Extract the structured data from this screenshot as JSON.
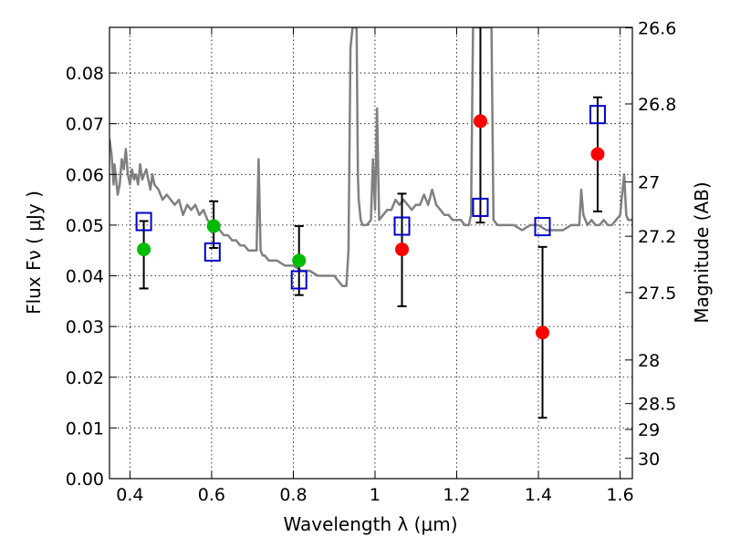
{
  "chart_data": {
    "type": "scatter",
    "xlabel": "Wavelength  λ (μm)",
    "ylabel": "Flux  Fν  ( μJy )",
    "y2label": "Magnitude (AB)",
    "xlim": [
      0.35,
      1.63
    ],
    "ylim": [
      0.0,
      0.089
    ],
    "xticks": [
      0.4,
      0.6,
      0.8,
      1.0,
      1.2,
      1.4,
      1.6
    ],
    "xtick_labels": [
      "0.4",
      "0.6",
      "0.8",
      "1",
      "1.2",
      "1.4",
      "1.6"
    ],
    "yticks": [
      0.0,
      0.01,
      0.02,
      0.03,
      0.04,
      0.05,
      0.06,
      0.07,
      0.08
    ],
    "ytick_labels": [
      "0.00",
      "0.01",
      "0.02",
      "0.03",
      "0.04",
      "0.05",
      "0.06",
      "0.07",
      "0.08"
    ],
    "mag_ticks": [
      {
        "flux": 0.0889,
        "label": "26.6"
      },
      {
        "flux": 0.0739,
        "label": "26.8"
      },
      {
        "flux": 0.0585,
        "label": "27"
      },
      {
        "flux": 0.0478,
        "label": "27.2"
      },
      {
        "flux": 0.0367,
        "label": "27.5"
      },
      {
        "flux": 0.0234,
        "label": "28"
      },
      {
        "flux": 0.0148,
        "label": "28.5"
      },
      {
        "flux": 0.0097,
        "label": "29"
      },
      {
        "flux": 0.004,
        "label": "30"
      }
    ],
    "grid": true,
    "series": [
      {
        "name": "model SED",
        "kind": "line",
        "color": "#808080",
        "x": [
          0.35,
          0.355,
          0.36,
          0.362,
          0.365,
          0.37,
          0.375,
          0.38,
          0.385,
          0.39,
          0.395,
          0.4,
          0.405,
          0.41,
          0.415,
          0.42,
          0.425,
          0.43,
          0.435,
          0.44,
          0.445,
          0.45,
          0.455,
          0.46,
          0.47,
          0.48,
          0.49,
          0.5,
          0.51,
          0.52,
          0.53,
          0.54,
          0.55,
          0.56,
          0.57,
          0.58,
          0.59,
          0.6,
          0.61,
          0.62,
          0.63,
          0.64,
          0.65,
          0.66,
          0.67,
          0.68,
          0.69,
          0.7,
          0.71,
          0.715,
          0.72,
          0.725,
          0.73,
          0.74,
          0.76,
          0.78,
          0.8,
          0.82,
          0.84,
          0.86,
          0.88,
          0.9,
          0.92,
          0.93,
          0.935,
          0.94,
          0.945,
          0.948,
          0.95,
          0.952,
          0.955,
          0.958,
          0.96,
          0.965,
          0.97,
          0.98,
          0.99,
          0.995,
          1.0,
          1.005,
          1.01,
          1.02,
          1.03,
          1.04,
          1.05,
          1.06,
          1.07,
          1.08,
          1.09,
          1.1,
          1.11,
          1.12,
          1.13,
          1.14,
          1.15,
          1.16,
          1.17,
          1.18,
          1.19,
          1.2,
          1.21,
          1.22,
          1.23,
          1.235,
          1.24,
          1.245,
          1.25,
          1.255,
          1.26,
          1.265,
          1.27,
          1.275,
          1.28,
          1.285,
          1.29,
          1.3,
          1.32,
          1.34,
          1.36,
          1.38,
          1.4,
          1.42,
          1.44,
          1.46,
          1.48,
          1.49,
          1.5,
          1.505,
          1.51,
          1.52,
          1.53,
          1.54,
          1.55,
          1.56,
          1.57,
          1.58,
          1.59,
          1.6,
          1.61,
          1.615,
          1.62,
          1.63
        ],
        "y": [
          0.067,
          0.064,
          0.058,
          0.062,
          0.06,
          0.056,
          0.058,
          0.063,
          0.061,
          0.065,
          0.06,
          0.058,
          0.061,
          0.059,
          0.06,
          0.058,
          0.062,
          0.059,
          0.06,
          0.061,
          0.059,
          0.057,
          0.06,
          0.058,
          0.057,
          0.055,
          0.056,
          0.055,
          0.054,
          0.055,
          0.052,
          0.054,
          0.053,
          0.054,
          0.052,
          0.053,
          0.051,
          0.05,
          0.05,
          0.049,
          0.048,
          0.048,
          0.047,
          0.047,
          0.046,
          0.046,
          0.045,
          0.045,
          0.045,
          0.063,
          0.045,
          0.044,
          0.044,
          0.043,
          0.043,
          0.042,
          0.042,
          0.041,
          0.041,
          0.04,
          0.04,
          0.04,
          0.038,
          0.038,
          0.045,
          0.085,
          0.089,
          0.089,
          0.089,
          0.089,
          0.089,
          0.06,
          0.055,
          0.051,
          0.05,
          0.05,
          0.051,
          0.063,
          0.053,
          0.073,
          0.051,
          0.052,
          0.053,
          0.053,
          0.055,
          0.054,
          0.055,
          0.054,
          0.053,
          0.054,
          0.054,
          0.056,
          0.054,
          0.057,
          0.054,
          0.053,
          0.052,
          0.052,
          0.051,
          0.051,
          0.051,
          0.05,
          0.05,
          0.052,
          0.089,
          0.089,
          0.089,
          0.089,
          0.089,
          0.089,
          0.089,
          0.089,
          0.089,
          0.089,
          0.051,
          0.05,
          0.05,
          0.05,
          0.049,
          0.05,
          0.05,
          0.049,
          0.049,
          0.049,
          0.05,
          0.05,
          0.05,
          0.057,
          0.052,
          0.05,
          0.051,
          0.05,
          0.05,
          0.051,
          0.05,
          0.05,
          0.051,
          0.052,
          0.06,
          0.052,
          0.051,
          0.051
        ]
      },
      {
        "name": "green detections",
        "kind": "points",
        "color": "#00bb00",
        "points": [
          {
            "x": 0.434,
            "y": 0.0452,
            "ylo": 0.0375,
            "yhi": 0.0508
          },
          {
            "x": 0.605,
            "y": 0.0498,
            "ylo": 0.0455,
            "yhi": 0.0547
          },
          {
            "x": 0.814,
            "y": 0.043,
            "ylo": 0.0362,
            "yhi": 0.0498
          }
        ]
      },
      {
        "name": "red detections",
        "kind": "points",
        "color": "#ff0000",
        "points": [
          {
            "x": 1.066,
            "y": 0.0452,
            "ylo": 0.034,
            "yhi": 0.0562
          },
          {
            "x": 1.258,
            "y": 0.0705,
            "ylo": 0.0505,
            "yhi": 0.089
          },
          {
            "x": 1.41,
            "y": 0.0288,
            "ylo": 0.012,
            "yhi": 0.0457
          },
          {
            "x": 1.545,
            "y": 0.064,
            "ylo": 0.0527,
            "yhi": 0.0752
          }
        ]
      },
      {
        "name": "model photometry",
        "kind": "open-squares",
        "color": "#0000cc",
        "points": [
          {
            "x": 0.434,
            "y": 0.0507
          },
          {
            "x": 0.602,
            "y": 0.0447
          },
          {
            "x": 0.814,
            "y": 0.0392
          },
          {
            "x": 1.066,
            "y": 0.0498
          },
          {
            "x": 1.258,
            "y": 0.0535
          },
          {
            "x": 1.41,
            "y": 0.0497
          },
          {
            "x": 1.545,
            "y": 0.0718
          }
        ]
      }
    ]
  }
}
